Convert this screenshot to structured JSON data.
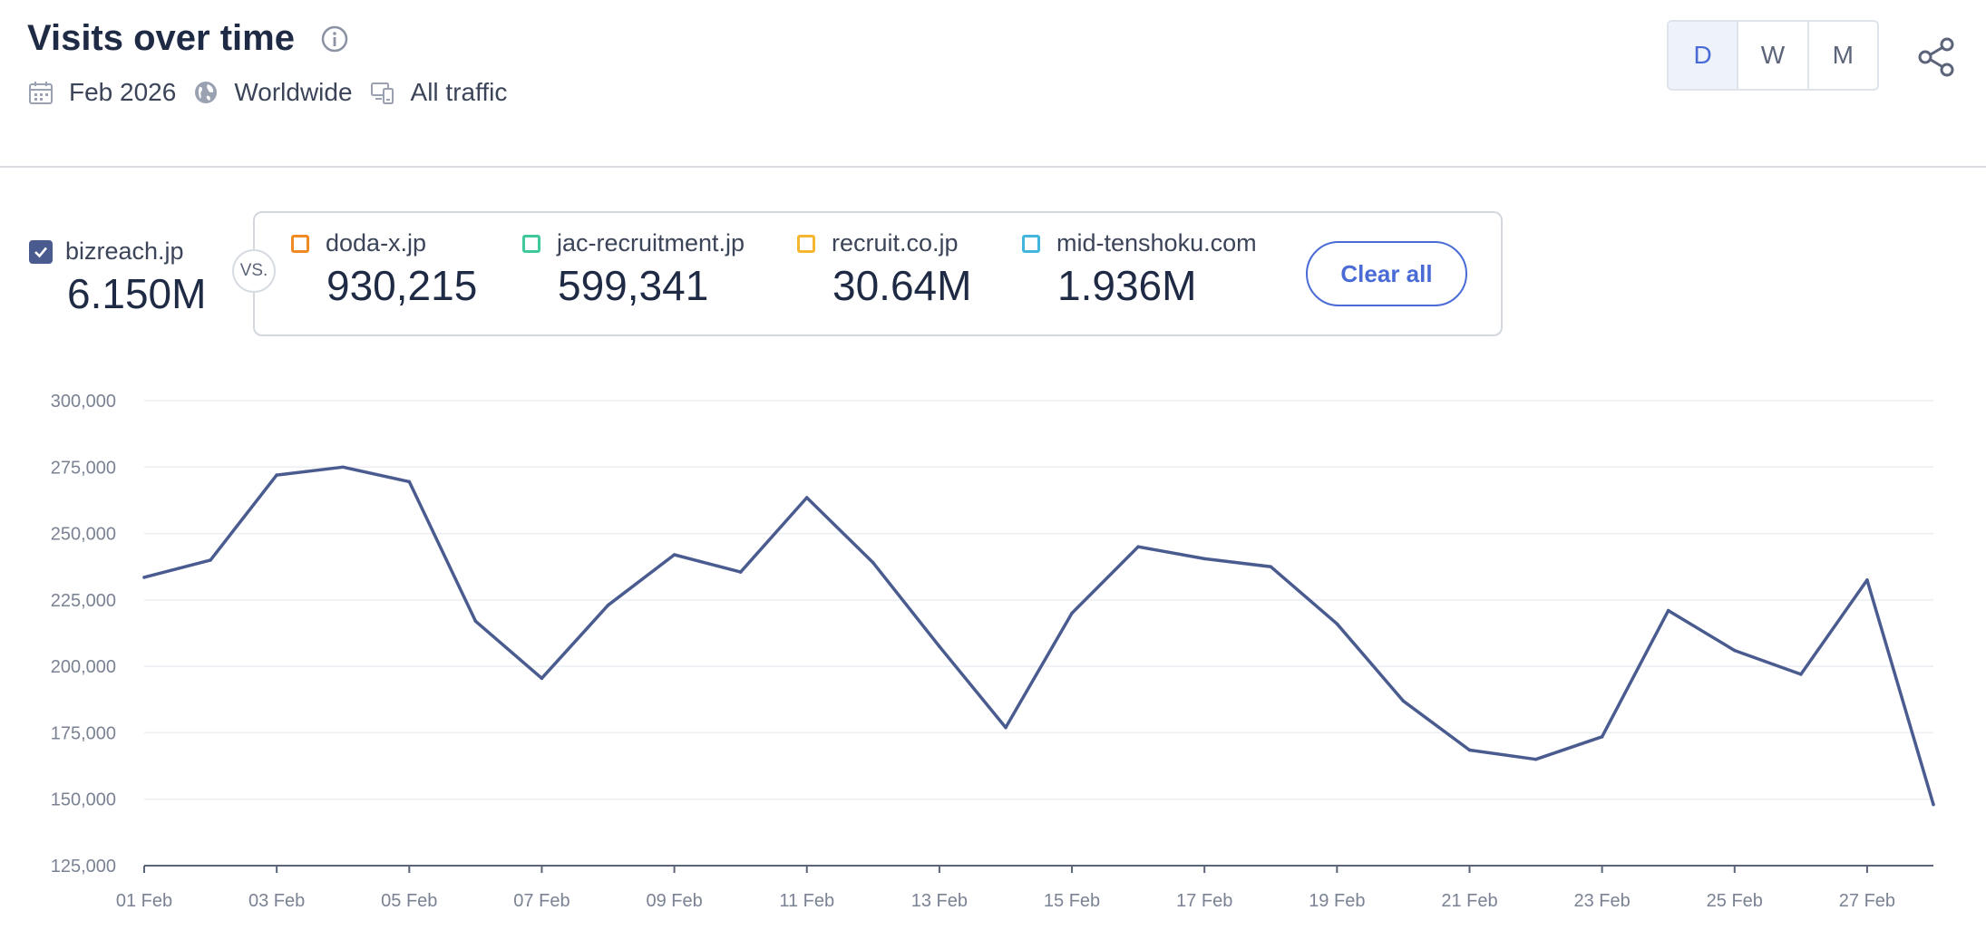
{
  "header": {
    "title": "Visits over time",
    "date": "Feb 2026",
    "region": "Worldwide",
    "traffic": "All traffic"
  },
  "granularity": {
    "options": [
      "D",
      "W",
      "M"
    ],
    "selected": "D"
  },
  "primary_site": {
    "name": "bizreach.jp",
    "value": "6.150M",
    "checked": true,
    "color": "#4a5b8f"
  },
  "compare": {
    "vs_label": "VS.",
    "clear_label": "Clear all",
    "sites": [
      {
        "name": "doda-x.jp",
        "value": "930,215",
        "color": "#f08a24"
      },
      {
        "name": "jac-recruitment.jp",
        "value": "599,341",
        "color": "#3fc89b"
      },
      {
        "name": "recruit.co.jp",
        "value": "30.64M",
        "color": "#f5b731"
      },
      {
        "name": "mid-tenshoku.com",
        "value": "1.936M",
        "color": "#42b6dd"
      }
    ]
  },
  "chart_data": {
    "type": "line",
    "title": "",
    "xlabel": "",
    "ylabel": "",
    "ylim": [
      125000,
      300000
    ],
    "yticks": [
      125000,
      150000,
      175000,
      200000,
      225000,
      250000,
      275000,
      300000
    ],
    "ytick_labels": [
      "125,000",
      "150,000",
      "175,000",
      "200,000",
      "225,000",
      "250,000",
      "275,000",
      "300,000"
    ],
    "xtick_labels": [
      "01 Feb",
      "03 Feb",
      "05 Feb",
      "07 Feb",
      "09 Feb",
      "11 Feb",
      "13 Feb",
      "15 Feb",
      "17 Feb",
      "19 Feb",
      "21 Feb",
      "23 Feb",
      "25 Feb",
      "27 Feb"
    ],
    "x": [
      "01 Feb",
      "02 Feb",
      "03 Feb",
      "04 Feb",
      "05 Feb",
      "06 Feb",
      "07 Feb",
      "08 Feb",
      "09 Feb",
      "10 Feb",
      "11 Feb",
      "12 Feb",
      "13 Feb",
      "14 Feb",
      "15 Feb",
      "16 Feb",
      "17 Feb",
      "18 Feb",
      "19 Feb",
      "20 Feb",
      "21 Feb",
      "22 Feb",
      "23 Feb",
      "24 Feb",
      "25 Feb",
      "26 Feb",
      "27 Feb",
      "28 Feb"
    ],
    "series": [
      {
        "name": "bizreach.jp",
        "color": "#4a5b8f",
        "values": [
          233500,
          240000,
          272000,
          275000,
          269500,
          217000,
          195500,
          223000,
          242000,
          235500,
          263500,
          239000,
          207500,
          177000,
          220000,
          245000,
          240500,
          237500,
          216000,
          187000,
          168500,
          165000,
          173500,
          221000,
          206000,
          197000,
          232500,
          148000
        ]
      }
    ],
    "grid": true
  },
  "icons": {
    "info": "info-icon",
    "calendar": "calendar-icon",
    "globe": "globe-icon",
    "devices": "devices-icon",
    "share": "share-icon",
    "check": "check-icon"
  }
}
